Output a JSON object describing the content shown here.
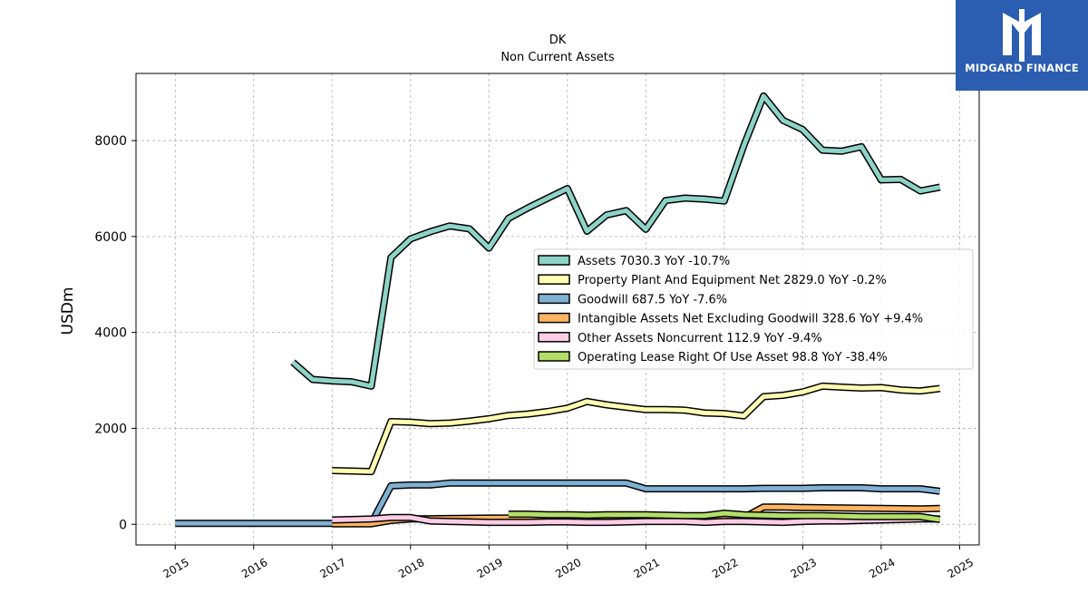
{
  "brand": {
    "name": "MIDGARD FINANCE"
  },
  "chart_data": {
    "type": "line",
    "title": "DK",
    "subtitle": "Non Current  Assets",
    "ylabel": "USDm",
    "xlabel": "",
    "xlim": [
      2014.5,
      2025.25
    ],
    "ylim": [
      -430,
      9400
    ],
    "x_ticks": [
      "2015",
      "2016",
      "2017",
      "2018",
      "2019",
      "2020",
      "2021",
      "2022",
      "2023",
      "2024",
      "2025"
    ],
    "y_ticks": [
      "0",
      "2000",
      "4000",
      "6000",
      "8000"
    ],
    "grid": true,
    "legend_position": "center-right",
    "series": [
      {
        "name": "Assets",
        "legend": "Assets  7030.3 YoY -10.7%",
        "color": "#8dd3c7",
        "x": [
          2016.5,
          2016.75,
          2017.0,
          2017.25,
          2017.5,
          2017.75,
          2018.0,
          2018.25,
          2018.5,
          2018.75,
          2019.0,
          2019.25,
          2019.5,
          2019.75,
          2020.0,
          2020.25,
          2020.5,
          2020.75,
          2021.0,
          2021.25,
          2021.5,
          2021.75,
          2022.0,
          2022.25,
          2022.5,
          2022.75,
          2023.0,
          2023.25,
          2023.5,
          2023.75,
          2024.0,
          2024.25,
          2024.5,
          2024.75
        ],
        "y": [
          3380,
          3020,
          2990,
          2970,
          2880,
          5560,
          5950,
          6100,
          6220,
          6160,
          5760,
          6380,
          6600,
          6800,
          7000,
          6110,
          6450,
          6540,
          6150,
          6750,
          6800,
          6780,
          6740,
          7900,
          8930,
          8420,
          8230,
          7800,
          7780,
          7870,
          7180,
          7190,
          6950,
          7030
        ]
      },
      {
        "name": "Property Plant And Equipment Net",
        "legend": "Property Plant And Equipment Net  2829.0 YoY -0.2%",
        "color": "#ffffb3",
        "x": [
          2017.0,
          2017.25,
          2017.5,
          2017.75,
          2018.0,
          2018.25,
          2018.5,
          2018.75,
          2019.0,
          2019.25,
          2019.5,
          2019.75,
          2020.0,
          2020.25,
          2020.5,
          2020.75,
          2021.0,
          2021.25,
          2021.5,
          2021.75,
          2022.0,
          2022.25,
          2022.5,
          2022.75,
          2023.0,
          2023.25,
          2023.5,
          2023.75,
          2024.0,
          2024.25,
          2024.5,
          2024.75
        ],
        "y": [
          1120,
          1110,
          1100,
          2140,
          2130,
          2100,
          2110,
          2150,
          2200,
          2270,
          2300,
          2350,
          2420,
          2560,
          2490,
          2440,
          2390,
          2390,
          2380,
          2320,
          2310,
          2260,
          2660,
          2690,
          2760,
          2880,
          2860,
          2840,
          2850,
          2800,
          2780,
          2830
        ]
      },
      {
        "name": "Goodwill",
        "legend": "Goodwill  687.5 YoY -7.6%",
        "color": "#80b1d3",
        "x": [
          2015.0,
          2015.5,
          2016.0,
          2016.5,
          2017.0,
          2017.25,
          2017.5,
          2017.75,
          2018.0,
          2018.25,
          2018.5,
          2018.75,
          2019.0,
          2019.25,
          2019.5,
          2019.75,
          2020.0,
          2020.25,
          2020.5,
          2020.75,
          2021.0,
          2021.25,
          2021.5,
          2021.75,
          2022.0,
          2022.25,
          2022.5,
          2022.75,
          2023.0,
          2023.25,
          2023.5,
          2023.75,
          2024.0,
          2024.25,
          2024.5,
          2024.75
        ],
        "y": [
          20,
          20,
          20,
          20,
          20,
          20,
          20,
          800,
          820,
          820,
          860,
          860,
          860,
          860,
          860,
          860,
          860,
          860,
          860,
          860,
          740,
          740,
          740,
          740,
          740,
          740,
          750,
          750,
          750,
          760,
          760,
          760,
          740,
          740,
          740,
          690
        ]
      },
      {
        "name": "Intangible Assets Net Excluding Goodwill",
        "legend": "Intangible Assets Net Excluding Goodwill  328.6 YoY +9.4%",
        "color": "#fdb462",
        "x": [
          2017.0,
          2017.5,
          2017.75,
          2018.0,
          2018.5,
          2019.0,
          2019.5,
          2020.0,
          2020.5,
          2021.0,
          2021.5,
          2022.0,
          2022.25,
          2022.5,
          2022.75,
          2023.0,
          2023.5,
          2024.0,
          2024.5,
          2024.75
        ],
        "y": [
          10,
          10,
          80,
          110,
          120,
          130,
          130,
          140,
          140,
          140,
          140,
          140,
          140,
          360,
          360,
          350,
          340,
          330,
          320,
          330
        ]
      },
      {
        "name": "Other Assets Noncurrent",
        "legend": "Other Assets Noncurrent  112.9 YoY -9.4%",
        "color": "#fccde5",
        "x": [
          2017.0,
          2017.25,
          2017.5,
          2017.75,
          2018.0,
          2018.25,
          2018.5,
          2018.75,
          2019.0,
          2019.25,
          2019.5,
          2019.75,
          2020.0,
          2020.25,
          2020.5,
          2020.75,
          2021.0,
          2021.25,
          2021.5,
          2021.75,
          2022.0,
          2022.25,
          2022.5,
          2022.75,
          2023.0,
          2023.25,
          2023.5,
          2023.75,
          2024.0,
          2024.25,
          2024.5,
          2024.75
        ],
        "y": [
          90,
          100,
          110,
          140,
          140,
          70,
          60,
          50,
          40,
          40,
          40,
          50,
          50,
          40,
          40,
          50,
          60,
          60,
          60,
          40,
          60,
          60,
          50,
          40,
          60,
          70,
          70,
          80,
          90,
          100,
          110,
          110
        ]
      },
      {
        "name": "Operating Lease Right Of Use Asset",
        "legend": "Operating Lease Right Of Use Asset  98.8 YoY -38.4%",
        "color": "#b3de69",
        "x": [
          2019.25,
          2019.5,
          2019.75,
          2020.0,
          2020.25,
          2020.5,
          2020.75,
          2021.0,
          2021.25,
          2021.5,
          2021.75,
          2022.0,
          2022.25,
          2022.5,
          2022.75,
          2023.0,
          2023.25,
          2023.5,
          2023.75,
          2024.0,
          2024.25,
          2024.5,
          2024.75
        ],
        "y": [
          210,
          210,
          200,
          200,
          190,
          200,
          200,
          200,
          190,
          180,
          180,
          230,
          200,
          190,
          180,
          180,
          180,
          170,
          160,
          160,
          160,
          160,
          100
        ]
      }
    ]
  }
}
